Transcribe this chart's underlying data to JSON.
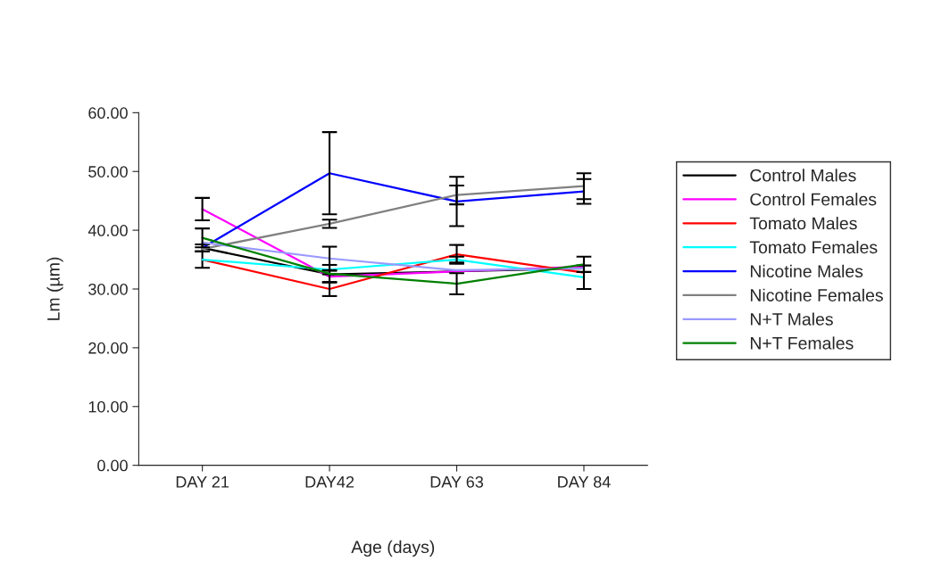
{
  "chart_data": {
    "type": "line",
    "xlabel": "Age (days)",
    "ylabel": "Lm (µm)",
    "categories": [
      "DAY 21",
      "DAY42",
      "DAY 63",
      "DAY 84"
    ],
    "ylim": [
      0,
      60
    ],
    "yticks": [
      {
        "value": 0,
        "label": "0.00"
      },
      {
        "value": 10,
        "label": "10.00"
      },
      {
        "value": 20,
        "label": "20.00"
      },
      {
        "value": 30,
        "label": "30.00"
      },
      {
        "value": 40,
        "label": "40.00"
      },
      {
        "value": 50,
        "label": "50.00"
      },
      {
        "value": 60,
        "label": "60.00"
      }
    ],
    "grid": false,
    "legend": "right",
    "marker": "none",
    "series": [
      {
        "name": "Control Males",
        "color": "#000000",
        "values": [
          37.0,
          32.5,
          33.0,
          33.5
        ],
        "errors": [
          null,
          null,
          null,
          null
        ]
      },
      {
        "name": "Control Females",
        "color": "#ff00ff",
        "values": [
          43.6,
          32.1,
          33.0,
          33.8
        ],
        "errors": [
          1.9,
          1.0,
          null,
          null
        ]
      },
      {
        "name": "Tomato Males",
        "color": "#ff0000",
        "values": [
          35.0,
          30.0,
          35.9,
          32.8
        ],
        "errors": [
          1.4,
          1.2,
          1.6,
          null
        ]
      },
      {
        "name": "Tomato Females",
        "color": "#00ffff",
        "values": [
          35.0,
          33.3,
          35.0,
          32.0
        ],
        "errors": [
          null,
          0.8,
          0.5,
          2.0
        ]
      },
      {
        "name": "Nicotine Males",
        "color": "#0000ff",
        "values": [
          37.0,
          49.7,
          44.9,
          46.6
        ],
        "errors": [
          0.6,
          7.0,
          4.2,
          2.1
        ]
      },
      {
        "name": "Nicotine Females",
        "color": "#808080",
        "values": [
          36.8,
          41.1,
          46.0,
          47.5
        ],
        "errors": [
          null,
          0.7,
          1.6,
          2.2
        ]
      },
      {
        "name": "N+T Males",
        "color": "#9999ff",
        "values": [
          37.9,
          35.2,
          33.2,
          33.5
        ],
        "errors": [
          null,
          2.0,
          null,
          null
        ]
      },
      {
        "name": "N+T Females",
        "color": "#008000",
        "values": [
          38.7,
          32.6,
          30.9,
          34.2
        ],
        "errors": [
          1.6,
          null,
          1.8,
          1.3
        ]
      }
    ]
  }
}
